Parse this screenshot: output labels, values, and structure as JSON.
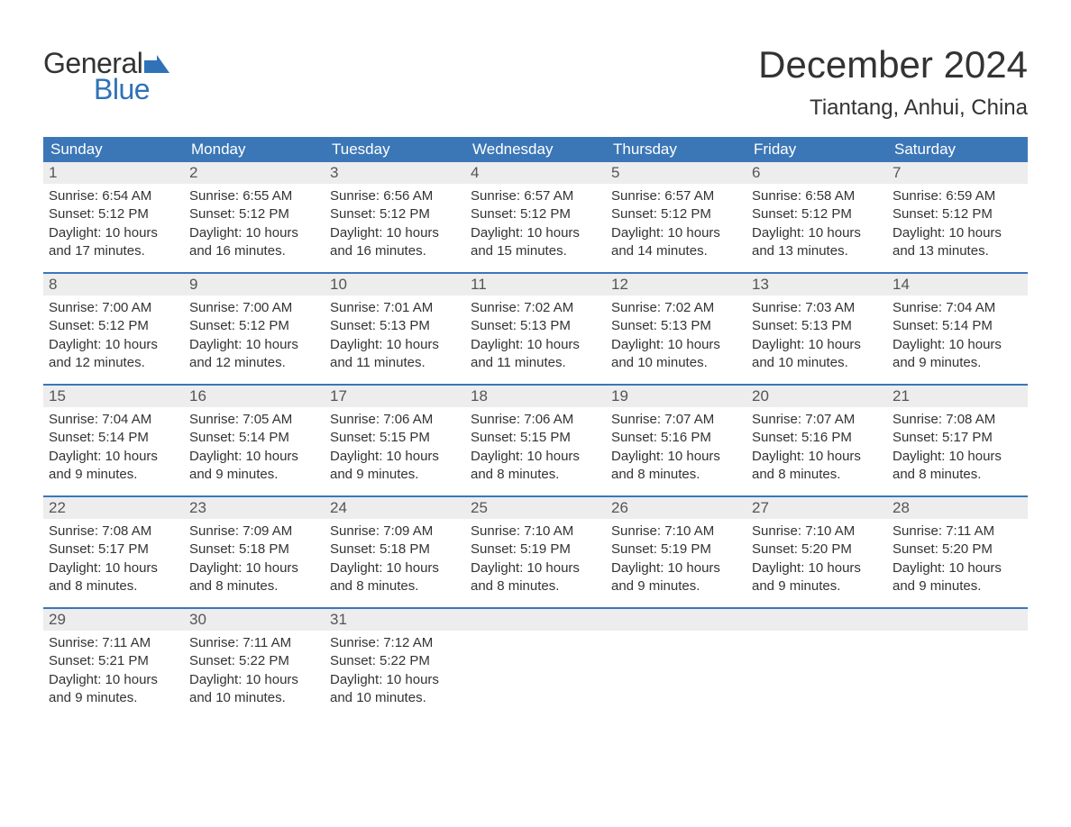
{
  "logo": {
    "text_general": "General",
    "text_blue": "Blue",
    "flag_color": "#2f72b8"
  },
  "title": "December 2024",
  "location": "Tiantang, Anhui, China",
  "colors": {
    "header_bg": "#3b77b7",
    "header_text": "#ffffff",
    "daynum_bg": "#ededed",
    "daynum_text": "#555555",
    "body_text": "#333333",
    "row_border": "#3b77b7",
    "page_bg": "#ffffff"
  },
  "day_headers": [
    "Sunday",
    "Monday",
    "Tuesday",
    "Wednesday",
    "Thursday",
    "Friday",
    "Saturday"
  ],
  "weeks": [
    [
      {
        "n": "1",
        "sunrise": "Sunrise: 6:54 AM",
        "sunset": "Sunset: 5:12 PM",
        "d1": "Daylight: 10 hours",
        "d2": "and 17 minutes."
      },
      {
        "n": "2",
        "sunrise": "Sunrise: 6:55 AM",
        "sunset": "Sunset: 5:12 PM",
        "d1": "Daylight: 10 hours",
        "d2": "and 16 minutes."
      },
      {
        "n": "3",
        "sunrise": "Sunrise: 6:56 AM",
        "sunset": "Sunset: 5:12 PM",
        "d1": "Daylight: 10 hours",
        "d2": "and 16 minutes."
      },
      {
        "n": "4",
        "sunrise": "Sunrise: 6:57 AM",
        "sunset": "Sunset: 5:12 PM",
        "d1": "Daylight: 10 hours",
        "d2": "and 15 minutes."
      },
      {
        "n": "5",
        "sunrise": "Sunrise: 6:57 AM",
        "sunset": "Sunset: 5:12 PM",
        "d1": "Daylight: 10 hours",
        "d2": "and 14 minutes."
      },
      {
        "n": "6",
        "sunrise": "Sunrise: 6:58 AM",
        "sunset": "Sunset: 5:12 PM",
        "d1": "Daylight: 10 hours",
        "d2": "and 13 minutes."
      },
      {
        "n": "7",
        "sunrise": "Sunrise: 6:59 AM",
        "sunset": "Sunset: 5:12 PM",
        "d1": "Daylight: 10 hours",
        "d2": "and 13 minutes."
      }
    ],
    [
      {
        "n": "8",
        "sunrise": "Sunrise: 7:00 AM",
        "sunset": "Sunset: 5:12 PM",
        "d1": "Daylight: 10 hours",
        "d2": "and 12 minutes."
      },
      {
        "n": "9",
        "sunrise": "Sunrise: 7:00 AM",
        "sunset": "Sunset: 5:12 PM",
        "d1": "Daylight: 10 hours",
        "d2": "and 12 minutes."
      },
      {
        "n": "10",
        "sunrise": "Sunrise: 7:01 AM",
        "sunset": "Sunset: 5:13 PM",
        "d1": "Daylight: 10 hours",
        "d2": "and 11 minutes."
      },
      {
        "n": "11",
        "sunrise": "Sunrise: 7:02 AM",
        "sunset": "Sunset: 5:13 PM",
        "d1": "Daylight: 10 hours",
        "d2": "and 11 minutes."
      },
      {
        "n": "12",
        "sunrise": "Sunrise: 7:02 AM",
        "sunset": "Sunset: 5:13 PM",
        "d1": "Daylight: 10 hours",
        "d2": "and 10 minutes."
      },
      {
        "n": "13",
        "sunrise": "Sunrise: 7:03 AM",
        "sunset": "Sunset: 5:13 PM",
        "d1": "Daylight: 10 hours",
        "d2": "and 10 minutes."
      },
      {
        "n": "14",
        "sunrise": "Sunrise: 7:04 AM",
        "sunset": "Sunset: 5:14 PM",
        "d1": "Daylight: 10 hours",
        "d2": "and 9 minutes."
      }
    ],
    [
      {
        "n": "15",
        "sunrise": "Sunrise: 7:04 AM",
        "sunset": "Sunset: 5:14 PM",
        "d1": "Daylight: 10 hours",
        "d2": "and 9 minutes."
      },
      {
        "n": "16",
        "sunrise": "Sunrise: 7:05 AM",
        "sunset": "Sunset: 5:14 PM",
        "d1": "Daylight: 10 hours",
        "d2": "and 9 minutes."
      },
      {
        "n": "17",
        "sunrise": "Sunrise: 7:06 AM",
        "sunset": "Sunset: 5:15 PM",
        "d1": "Daylight: 10 hours",
        "d2": "and 9 minutes."
      },
      {
        "n": "18",
        "sunrise": "Sunrise: 7:06 AM",
        "sunset": "Sunset: 5:15 PM",
        "d1": "Daylight: 10 hours",
        "d2": "and 8 minutes."
      },
      {
        "n": "19",
        "sunrise": "Sunrise: 7:07 AM",
        "sunset": "Sunset: 5:16 PM",
        "d1": "Daylight: 10 hours",
        "d2": "and 8 minutes."
      },
      {
        "n": "20",
        "sunrise": "Sunrise: 7:07 AM",
        "sunset": "Sunset: 5:16 PM",
        "d1": "Daylight: 10 hours",
        "d2": "and 8 minutes."
      },
      {
        "n": "21",
        "sunrise": "Sunrise: 7:08 AM",
        "sunset": "Sunset: 5:17 PM",
        "d1": "Daylight: 10 hours",
        "d2": "and 8 minutes."
      }
    ],
    [
      {
        "n": "22",
        "sunrise": "Sunrise: 7:08 AM",
        "sunset": "Sunset: 5:17 PM",
        "d1": "Daylight: 10 hours",
        "d2": "and 8 minutes."
      },
      {
        "n": "23",
        "sunrise": "Sunrise: 7:09 AM",
        "sunset": "Sunset: 5:18 PM",
        "d1": "Daylight: 10 hours",
        "d2": "and 8 minutes."
      },
      {
        "n": "24",
        "sunrise": "Sunrise: 7:09 AM",
        "sunset": "Sunset: 5:18 PM",
        "d1": "Daylight: 10 hours",
        "d2": "and 8 minutes."
      },
      {
        "n": "25",
        "sunrise": "Sunrise: 7:10 AM",
        "sunset": "Sunset: 5:19 PM",
        "d1": "Daylight: 10 hours",
        "d2": "and 8 minutes."
      },
      {
        "n": "26",
        "sunrise": "Sunrise: 7:10 AM",
        "sunset": "Sunset: 5:19 PM",
        "d1": "Daylight: 10 hours",
        "d2": "and 9 minutes."
      },
      {
        "n": "27",
        "sunrise": "Sunrise: 7:10 AM",
        "sunset": "Sunset: 5:20 PM",
        "d1": "Daylight: 10 hours",
        "d2": "and 9 minutes."
      },
      {
        "n": "28",
        "sunrise": "Sunrise: 7:11 AM",
        "sunset": "Sunset: 5:20 PM",
        "d1": "Daylight: 10 hours",
        "d2": "and 9 minutes."
      }
    ],
    [
      {
        "n": "29",
        "sunrise": "Sunrise: 7:11 AM",
        "sunset": "Sunset: 5:21 PM",
        "d1": "Daylight: 10 hours",
        "d2": "and 9 minutes."
      },
      {
        "n": "30",
        "sunrise": "Sunrise: 7:11 AM",
        "sunset": "Sunset: 5:22 PM",
        "d1": "Daylight: 10 hours",
        "d2": "and 10 minutes."
      },
      {
        "n": "31",
        "sunrise": "Sunrise: 7:12 AM",
        "sunset": "Sunset: 5:22 PM",
        "d1": "Daylight: 10 hours",
        "d2": "and 10 minutes."
      },
      {
        "n": "",
        "sunrise": "",
        "sunset": "",
        "d1": "",
        "d2": ""
      },
      {
        "n": "",
        "sunrise": "",
        "sunset": "",
        "d1": "",
        "d2": ""
      },
      {
        "n": "",
        "sunrise": "",
        "sunset": "",
        "d1": "",
        "d2": ""
      },
      {
        "n": "",
        "sunrise": "",
        "sunset": "",
        "d1": "",
        "d2": ""
      }
    ]
  ]
}
